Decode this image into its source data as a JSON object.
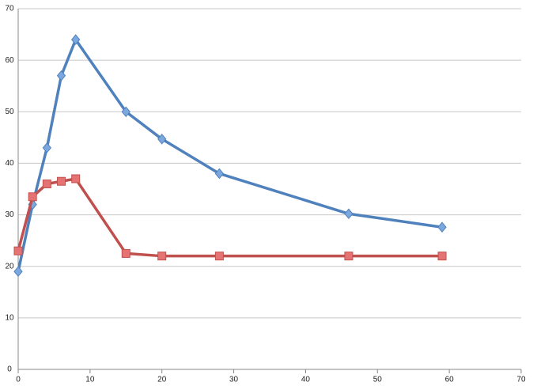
{
  "chart_data": {
    "type": "line",
    "x": [
      0,
      2,
      4,
      6,
      8,
      15,
      20,
      28,
      46,
      59
    ],
    "series": [
      {
        "color": "#4f81bd",
        "marker": "diamond",
        "marker_color": "#7ba7de",
        "values": [
          19,
          32,
          43,
          57,
          64,
          50,
          44.7,
          38,
          30.2,
          27.6
        ]
      },
      {
        "color": "#c0504d",
        "marker": "square",
        "marker_color": "#e57373",
        "values": [
          23,
          33.5,
          36,
          36.5,
          37,
          22.5,
          22,
          22,
          22,
          22
        ]
      }
    ],
    "xlim": [
      0,
      70
    ],
    "xticks": [
      0,
      10,
      20,
      30,
      40,
      50,
      60,
      70
    ],
    "ylim": [
      0,
      70
    ],
    "yticks": [
      0,
      10,
      20,
      30,
      40,
      50,
      60,
      70
    ],
    "grid": true
  }
}
